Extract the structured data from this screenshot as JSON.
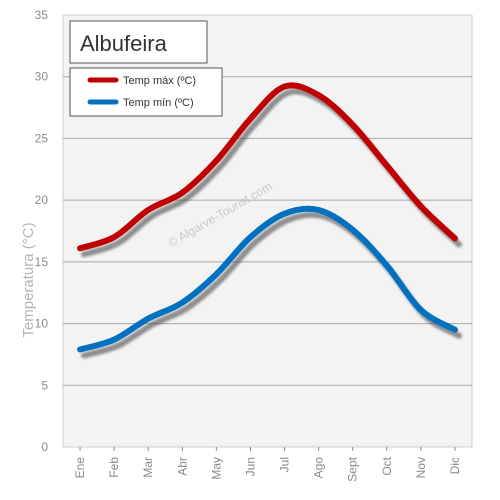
{
  "chart_data": {
    "type": "line",
    "title": "Albufeira",
    "ylabel": "Temperatura (°C)",
    "xlabel": "",
    "categories": [
      "Ene",
      "Feb",
      "Mar",
      "Abr",
      "May",
      "Jun",
      "Jul",
      "Ago",
      "Sept",
      "Oct",
      "Nov",
      "Dic"
    ],
    "ylim": [
      0,
      35
    ],
    "yticks": [
      "0",
      "5",
      "10",
      "15",
      "20",
      "25",
      "30",
      "35"
    ],
    "grid": true,
    "legend_position": "top-left",
    "watermark": "© Algarve-Tourist.com",
    "series": [
      {
        "name": "Temp máx (ºC)",
        "color": "#c00000",
        "values": [
          16.1,
          17.0,
          19.2,
          20.6,
          23.2,
          26.6,
          29.2,
          28.5,
          26.1,
          22.8,
          19.5,
          16.9
        ]
      },
      {
        "name": "Temp mín (ºC)",
        "color": "#0070c0",
        "values": [
          7.9,
          8.7,
          10.4,
          11.7,
          14.0,
          17.0,
          18.9,
          19.2,
          17.6,
          14.7,
          11.1,
          9.5
        ]
      }
    ]
  }
}
